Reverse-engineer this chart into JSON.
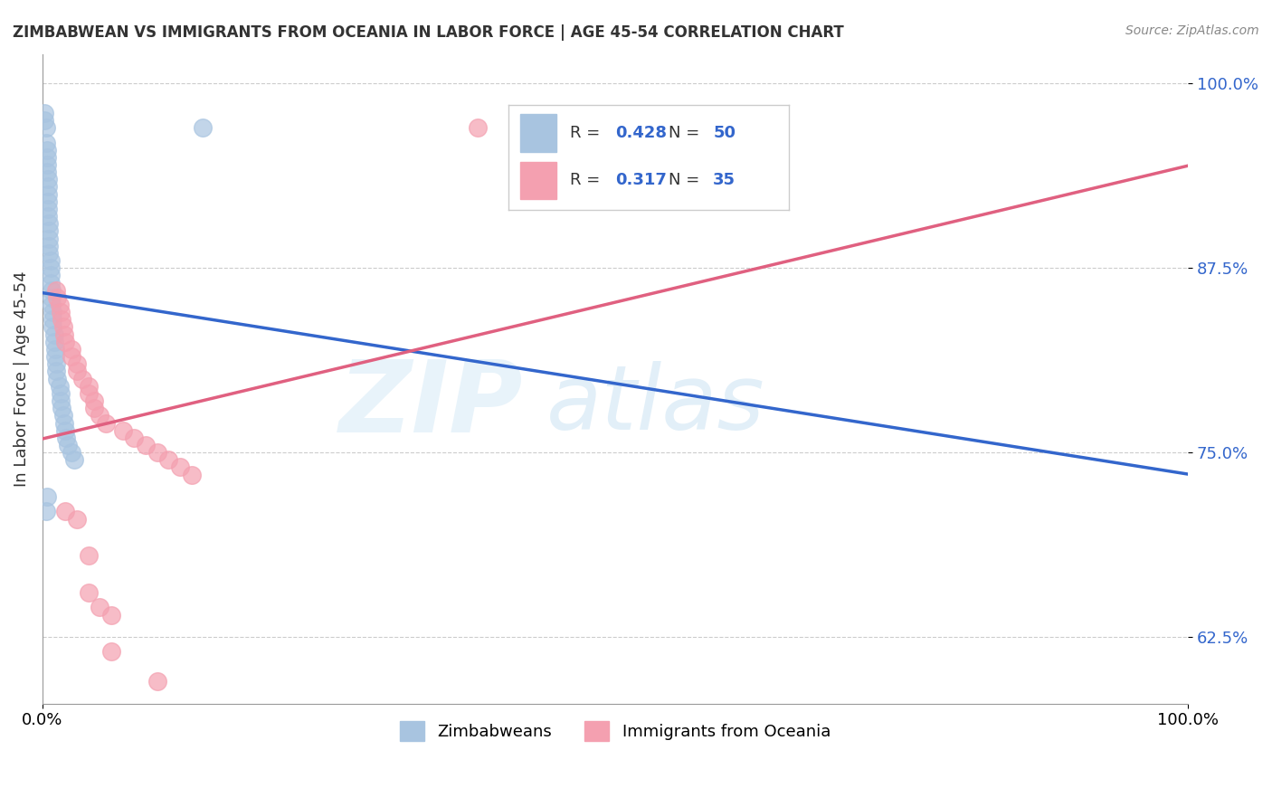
{
  "title": "ZIMBABWEAN VS IMMIGRANTS FROM OCEANIA IN LABOR FORCE | AGE 45-54 CORRELATION CHART",
  "source": "Source: ZipAtlas.com",
  "ylabel": "In Labor Force | Age 45-54",
  "blue_R": "0.428",
  "blue_N": "50",
  "pink_R": "0.317",
  "pink_N": "35",
  "blue_color": "#a8c4e0",
  "blue_line_color": "#3366cc",
  "pink_color": "#f4a0b0",
  "pink_line_color": "#e06080",
  "blue_scatter": [
    [
      0.002,
      0.98
    ],
    [
      0.002,
      0.975
    ],
    [
      0.003,
      0.97
    ],
    [
      0.003,
      0.96
    ],
    [
      0.004,
      0.955
    ],
    [
      0.004,
      0.95
    ],
    [
      0.004,
      0.945
    ],
    [
      0.004,
      0.94
    ],
    [
      0.005,
      0.935
    ],
    [
      0.005,
      0.93
    ],
    [
      0.005,
      0.925
    ],
    [
      0.005,
      0.92
    ],
    [
      0.005,
      0.915
    ],
    [
      0.005,
      0.91
    ],
    [
      0.006,
      0.905
    ],
    [
      0.006,
      0.9
    ],
    [
      0.006,
      0.895
    ],
    [
      0.006,
      0.89
    ],
    [
      0.006,
      0.885
    ],
    [
      0.007,
      0.88
    ],
    [
      0.007,
      0.875
    ],
    [
      0.007,
      0.87
    ],
    [
      0.007,
      0.865
    ],
    [
      0.008,
      0.86
    ],
    [
      0.008,
      0.855
    ],
    [
      0.008,
      0.85
    ],
    [
      0.009,
      0.845
    ],
    [
      0.009,
      0.84
    ],
    [
      0.009,
      0.835
    ],
    [
      0.01,
      0.83
    ],
    [
      0.01,
      0.825
    ],
    [
      0.011,
      0.82
    ],
    [
      0.011,
      0.815
    ],
    [
      0.012,
      0.81
    ],
    [
      0.012,
      0.805
    ],
    [
      0.013,
      0.8
    ],
    [
      0.015,
      0.795
    ],
    [
      0.016,
      0.79
    ],
    [
      0.016,
      0.785
    ],
    [
      0.017,
      0.78
    ],
    [
      0.018,
      0.775
    ],
    [
      0.019,
      0.77
    ],
    [
      0.02,
      0.765
    ],
    [
      0.021,
      0.76
    ],
    [
      0.022,
      0.755
    ],
    [
      0.025,
      0.75
    ],
    [
      0.028,
      0.745
    ],
    [
      0.004,
      0.72
    ],
    [
      0.003,
      0.71
    ],
    [
      0.14,
      0.97
    ]
  ],
  "pink_scatter": [
    [
      0.012,
      0.86
    ],
    [
      0.013,
      0.855
    ],
    [
      0.015,
      0.85
    ],
    [
      0.016,
      0.845
    ],
    [
      0.017,
      0.84
    ],
    [
      0.018,
      0.835
    ],
    [
      0.019,
      0.83
    ],
    [
      0.02,
      0.825
    ],
    [
      0.025,
      0.82
    ],
    [
      0.025,
      0.815
    ],
    [
      0.03,
      0.81
    ],
    [
      0.03,
      0.805
    ],
    [
      0.035,
      0.8
    ],
    [
      0.04,
      0.795
    ],
    [
      0.04,
      0.79
    ],
    [
      0.045,
      0.785
    ],
    [
      0.045,
      0.78
    ],
    [
      0.05,
      0.775
    ],
    [
      0.055,
      0.77
    ],
    [
      0.07,
      0.765
    ],
    [
      0.08,
      0.76
    ],
    [
      0.09,
      0.755
    ],
    [
      0.1,
      0.75
    ],
    [
      0.11,
      0.745
    ],
    [
      0.12,
      0.74
    ],
    [
      0.13,
      0.735
    ],
    [
      0.02,
      0.71
    ],
    [
      0.03,
      0.705
    ],
    [
      0.04,
      0.68
    ],
    [
      0.04,
      0.655
    ],
    [
      0.05,
      0.645
    ],
    [
      0.06,
      0.64
    ],
    [
      0.06,
      0.615
    ],
    [
      0.1,
      0.595
    ],
    [
      0.38,
      0.97
    ]
  ],
  "xlim": [
    0.0,
    1.0
  ],
  "ylim": [
    0.58,
    1.02
  ],
  "yticks": [
    0.625,
    0.75,
    0.875,
    1.0
  ],
  "ytick_labels": [
    "62.5%",
    "75.0%",
    "87.5%",
    "100.0%"
  ],
  "grid_color": "#cccccc",
  "bg_color": "#ffffff"
}
